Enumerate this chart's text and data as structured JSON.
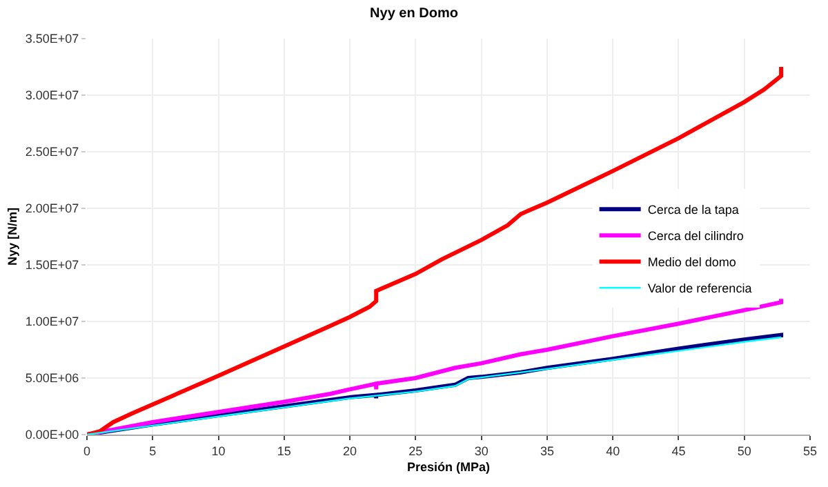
{
  "chart_data": {
    "type": "line",
    "title": "Nyy en Domo",
    "xlabel": "Presión (MPa)",
    "ylabel": "Nyy [N/m]",
    "xlim": [
      0,
      55
    ],
    "xticks": [
      0,
      5,
      10,
      15,
      20,
      25,
      30,
      35,
      40,
      45,
      50,
      55
    ],
    "ylim": [
      0,
      35000000
    ],
    "yticks": [
      {
        "value": 0,
        "label": "0.00E+00"
      },
      {
        "value": 5000000,
        "label": "5.00E+06"
      },
      {
        "value": 10000000,
        "label": "1.00E+07"
      },
      {
        "value": 15000000,
        "label": "1.50E+07"
      },
      {
        "value": 20000000,
        "label": "2.00E+07"
      },
      {
        "value": 25000000,
        "label": "2.50E+07"
      },
      {
        "value": 30000000,
        "label": "3.00E+07"
      },
      {
        "value": 35000000,
        "label": "3.50E+07"
      }
    ],
    "grid": true,
    "legend": "right",
    "marker": "none",
    "line_style": "solid",
    "series": [
      {
        "name": "Cerca de la tapa",
        "color": "#000080",
        "x": [
          0,
          5,
          10,
          15,
          20,
          22,
          22,
          22,
          25,
          28,
          29,
          30,
          33,
          35,
          40,
          45,
          50,
          52.8,
          52.8
        ],
        "values": [
          0,
          900000,
          1700000,
          2500000,
          3300000,
          3500000,
          3200000,
          3500000,
          3900000,
          4400000,
          5000000,
          5100000,
          5500000,
          5900000,
          6700000,
          7600000,
          8400000,
          8800000,
          8600000
        ]
      },
      {
        "name": "Cerca del cilindro",
        "color": "#ff00ff",
        "x": [
          0,
          5,
          10,
          15,
          18.5,
          20,
          22,
          22,
          22,
          25,
          28,
          30,
          33,
          35,
          40,
          45,
          50,
          52.8,
          52.8
        ],
        "values": [
          0,
          1100000,
          2000000,
          2900000,
          3600000,
          4000000,
          4500000,
          4000000,
          4500000,
          5000000,
          5900000,
          6300000,
          7100000,
          7500000,
          8700000,
          9800000,
          11000000,
          11700000,
          12000000
        ]
      },
      {
        "name": "Medio del domo",
        "color": "#ff0000",
        "x": [
          0,
          1,
          2,
          3.5,
          10,
          18.5,
          20,
          21.5,
          22,
          22,
          25,
          27,
          30,
          32,
          33,
          35,
          40,
          45,
          50,
          51.5,
          52.8,
          52.8
        ],
        "values": [
          0,
          300000,
          1100000,
          1900000,
          5200000,
          9600000,
          10400000,
          11300000,
          11800000,
          12700000,
          14200000,
          15500000,
          17200000,
          18500000,
          19500000,
          20500000,
          23300000,
          26200000,
          29400000,
          30500000,
          31700000,
          32500000
        ]
      },
      {
        "name": "Valor de referencia",
        "color": "#00ffff",
        "x": [
          0,
          5,
          10,
          15,
          20,
          25,
          28,
          29,
          35,
          40,
          45,
          50,
          52.8
        ],
        "values": [
          0,
          800000,
          1600000,
          2400000,
          3200000,
          3800000,
          4300000,
          4900000,
          5800000,
          6600000,
          7400000,
          8200000,
          8600000
        ]
      }
    ]
  }
}
